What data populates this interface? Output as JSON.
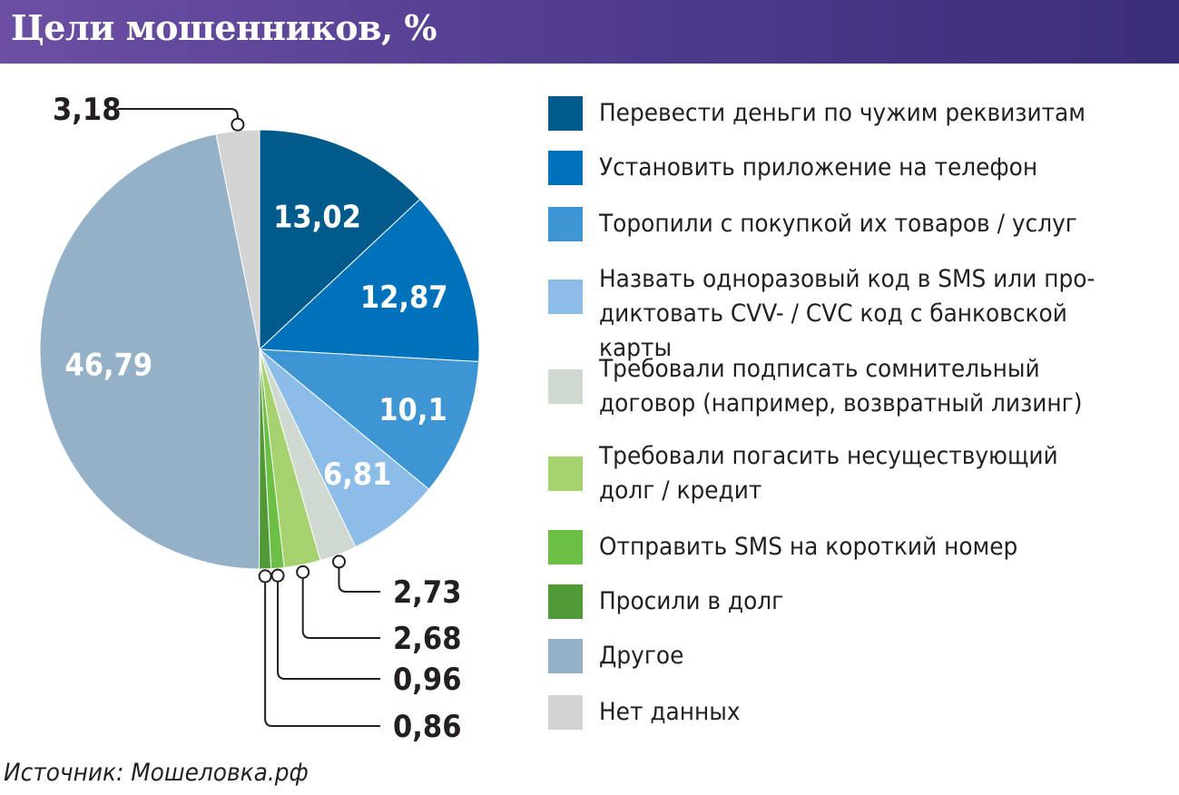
{
  "header": {
    "title": "Цели мошенников, %"
  },
  "source": "Источник: Мошеловка.рф",
  "chart_data": {
    "type": "pie",
    "title": "Цели мошенников, %",
    "unit": "%",
    "labels": [
      "Перевести деньги по чужим реквизитам",
      "Установить приложение на телефон",
      "Торопили с покупкой их товаров / услуг",
      "Назвать одноразовый код в SMS или про-\nдиктовать CVV- / CVC код с банковской карты",
      "Требовали подписать сомнительный\nдоговор (например, возвратный лизинг)",
      "Требовали погасить несуществующий\nдолг / кредит",
      "Отправить SMS на короткий номер",
      "Просили в долг",
      "Другое",
      "Нет данных"
    ],
    "values": [
      13.02,
      12.87,
      10.1,
      6.81,
      2.73,
      2.68,
      0.96,
      0.86,
      46.79,
      3.18
    ],
    "value_labels": [
      "13,02",
      "12,87",
      "10,1",
      "6,81",
      "2,73",
      "2,68",
      "0,96",
      "0,86",
      "46,79",
      "3,18"
    ],
    "colors": [
      "#005a8b",
      "#0072bc",
      "#3d95d3",
      "#8cbde8",
      "#cfd9d0",
      "#a5d26f",
      "#6cbf45",
      "#4f9a36",
      "#95b1c8",
      "#d3d3d3"
    ],
    "legend_position": "right",
    "start_angle": "12 o'clock, clockwise"
  }
}
